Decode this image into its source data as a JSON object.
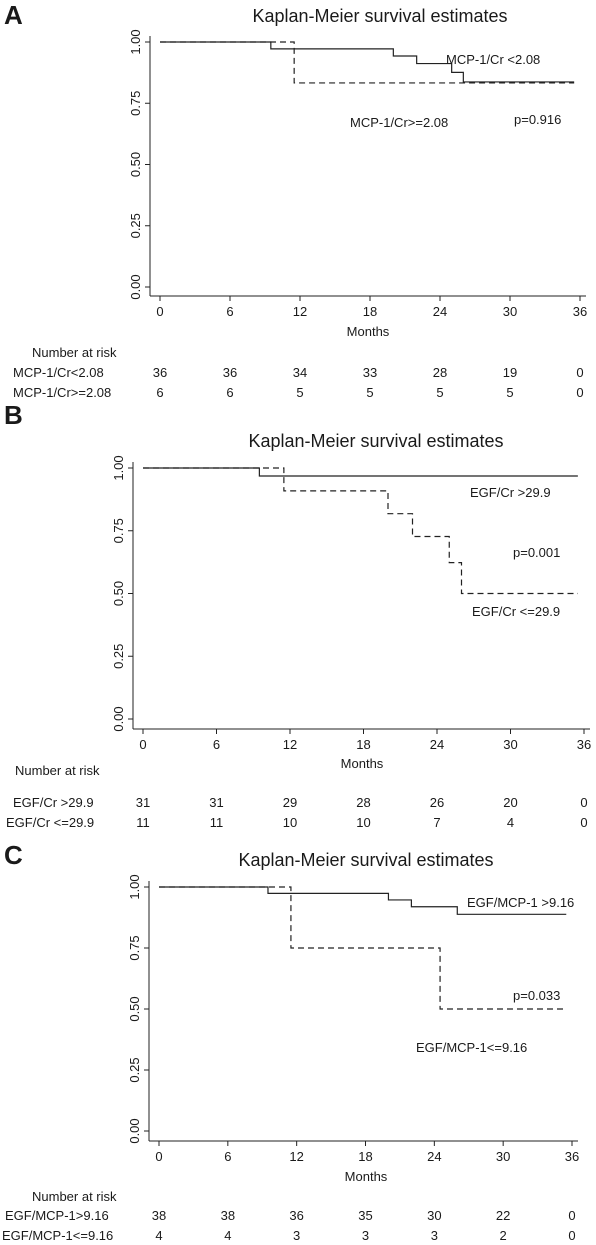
{
  "chart_data": [
    {
      "type": "line",
      "panel_label": "A",
      "title": "Kaplan-Meier survival estimates",
      "xlabel": "Months",
      "ylabel": "",
      "xlim": [
        0,
        36
      ],
      "ylim": [
        0,
        1
      ],
      "xticks": [
        "0",
        "6",
        "12",
        "18",
        "24",
        "30",
        "36"
      ],
      "yticks": [
        "0.00",
        "0.25",
        "0.50",
        "0.75",
        "1.00"
      ],
      "grid": false,
      "series": [
        {
          "name": "MCP-1/Cr <2.08",
          "style": "solid",
          "x": [
            0,
            9.5,
            20,
            22,
            25,
            26,
            35.5
          ],
          "y": [
            1.0,
            0.972,
            0.943,
            0.912,
            0.876,
            0.837,
            0.837
          ]
        },
        {
          "name": "MCP-1/Cr>=2.08",
          "style": "dashed",
          "x": [
            0,
            11.5,
            35.5
          ],
          "y": [
            1.0,
            0.833,
            0.833
          ]
        }
      ],
      "annotations": [
        {
          "text": "MCP-1/Cr <2.08",
          "series": 0
        },
        {
          "text": "MCP-1/Cr>=2.08",
          "series": 1
        },
        {
          "text": "p=0.916"
        }
      ],
      "risk_table": {
        "header": "Number at risk",
        "rows": [
          {
            "label": "MCP-1/Cr<2.08",
            "values": [
              "36",
              "36",
              "34",
              "33",
              "28",
              "19",
              "0"
            ]
          },
          {
            "label": "MCP-1/Cr>=2.08",
            "values": [
              "6",
              "6",
              "5",
              "5",
              "5",
              "5",
              "0"
            ]
          }
        ]
      }
    },
    {
      "type": "line",
      "panel_label": "B",
      "title": "Kaplan-Meier survival estimates",
      "xlabel": "Months",
      "ylabel": "",
      "xlim": [
        0,
        36
      ],
      "ylim": [
        0,
        1
      ],
      "xticks": [
        "0",
        "6",
        "12",
        "18",
        "24",
        "30",
        "36"
      ],
      "yticks": [
        "0.00",
        "0.25",
        "0.50",
        "0.75",
        "1.00"
      ],
      "grid": false,
      "series": [
        {
          "name": "EGF/Cr >29.9",
          "style": "solid",
          "x": [
            0,
            9.5,
            35.5
          ],
          "y": [
            1.0,
            0.968,
            0.968
          ]
        },
        {
          "name": "EGF/Cr <=29.9",
          "style": "dashed",
          "x": [
            0,
            11.5,
            20,
            22,
            25,
            26,
            35.5
          ],
          "y": [
            1.0,
            0.909,
            0.818,
            0.727,
            0.623,
            0.5,
            0.5
          ]
        }
      ],
      "annotations": [
        {
          "text": "EGF/Cr >29.9",
          "series": 0
        },
        {
          "text": "EGF/Cr <=29.9",
          "series": 1
        },
        {
          "text": "p=0.001"
        }
      ],
      "risk_table": {
        "header": "Number at risk",
        "rows": [
          {
            "label": "EGF/Cr >29.9",
            "values": [
              "31",
              "31",
              "29",
              "28",
              "26",
              "20",
              "0"
            ]
          },
          {
            "label": "EGF/Cr <=29.9",
            "values": [
              "11",
              "11",
              "10",
              "10",
              "7",
              "4",
              "0"
            ]
          }
        ]
      }
    },
    {
      "type": "line",
      "panel_label": "C",
      "title": "Kaplan-Meier survival estimates",
      "xlabel": "Months",
      "ylabel": "",
      "xlim": [
        0,
        36
      ],
      "ylim": [
        0,
        1
      ],
      "xticks": [
        "0",
        "6",
        "12",
        "18",
        "24",
        "30",
        "36"
      ],
      "yticks": [
        "0.00",
        "0.25",
        "0.50",
        "0.75",
        "1.00"
      ],
      "grid": false,
      "series": [
        {
          "name": "EGF/MCP-1 >9.16",
          "style": "solid",
          "x": [
            0,
            9.5,
            20,
            22,
            26,
            35.5
          ],
          "y": [
            1.0,
            0.974,
            0.947,
            0.919,
            0.888,
            0.888
          ]
        },
        {
          "name": "EGF/MCP-1<=9.16",
          "style": "dashed",
          "x": [
            0,
            11.5,
            24.5,
            35.5
          ],
          "y": [
            1.0,
            0.75,
            0.5,
            0.5
          ]
        }
      ],
      "annotations": [
        {
          "text": "EGF/MCP-1 >9.16",
          "series": 0
        },
        {
          "text": "EGF/MCP-1<=9.16",
          "series": 1
        },
        {
          "text": "p=0.033"
        }
      ],
      "risk_table": {
        "header": "Number at risk",
        "rows": [
          {
            "label": "EGF/MCP-1>9.16",
            "values": [
              "38",
              "38",
              "36",
              "35",
              "30",
              "22",
              "0"
            ]
          },
          {
            "label": "EGF/MCP-1<=9.16",
            "values": [
              "4",
              "4",
              "3",
              "3",
              "3",
              "2",
              "0"
            ]
          }
        ]
      }
    }
  ]
}
